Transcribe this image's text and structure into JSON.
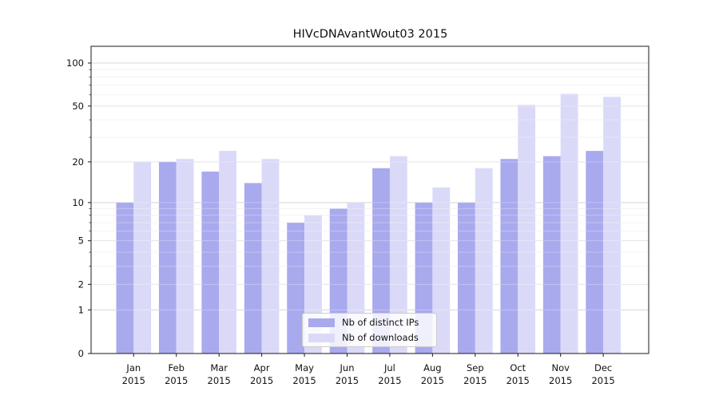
{
  "title": "HIVcDNAvantWout03 2015",
  "chart_data": {
    "type": "bar",
    "title": "HIVcDNAvantWout03 2015",
    "categories": [
      "Jan",
      "Feb",
      "Mar",
      "Apr",
      "May",
      "Jun",
      "Jul",
      "Aug",
      "Sep",
      "Oct",
      "Nov",
      "Dec"
    ],
    "year_label": "2015",
    "series": [
      {
        "name": "Nb of distinct IPs",
        "color": "#a9a9ee",
        "values": [
          10,
          20,
          17,
          14,
          7,
          9,
          18,
          10,
          10,
          21,
          22,
          24
        ]
      },
      {
        "name": "Nb of downloads",
        "color": "#dadaf8",
        "values": [
          20,
          21,
          24,
          21,
          8,
          10,
          22,
          13,
          18,
          51,
          61,
          58
        ]
      }
    ],
    "y_scale": "log10(1+value)",
    "y_ticks": [
      0,
      1,
      2,
      5,
      10,
      20,
      50,
      100
    ],
    "y_major_grid": [
      1,
      10,
      100
    ],
    "y_mid_grid": [
      2,
      5,
      20,
      50
    ],
    "y_minor_grid": [
      3,
      4,
      6,
      7,
      8,
      9,
      30,
      40,
      60,
      70,
      80,
      90
    ],
    "ylim": [
      0,
      131
    ],
    "xlabel": "",
    "ylabel": "",
    "grid": true,
    "legend_position": "lower center",
    "colors": {
      "bar_dark": "#a9a9ee",
      "bar_light": "#dadaf8",
      "axis": "#1a1a1a",
      "grid_major": "#c9c9c9",
      "grid_mid": "#dddddd",
      "grid_minor": "#efefef",
      "text": "#111111"
    }
  },
  "legend": {
    "items": [
      {
        "label": "Nb of distinct IPs"
      },
      {
        "label": "Nb of downloads"
      }
    ]
  }
}
